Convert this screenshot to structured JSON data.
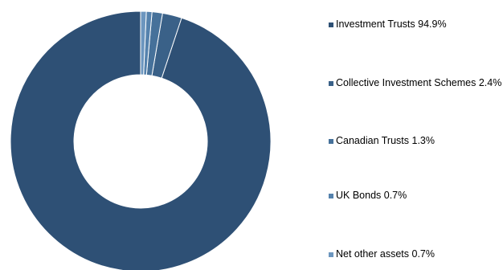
{
  "chart_data": {
    "type": "pie",
    "donut": true,
    "legend_position": "right",
    "slices": [
      {
        "label": "Investment Trusts 94.9%",
        "value": 94.9,
        "color": "#2e5075"
      },
      {
        "label": "Collective Investment Schemes 2.4%",
        "value": 2.4,
        "color": "#3a6188"
      },
      {
        "label": "Canadian Trusts 1.3%",
        "value": 1.3,
        "color": "#46719a"
      },
      {
        "label": "UK Bonds 0.7%",
        "value": 0.7,
        "color": "#5582ad"
      },
      {
        "label": "Net other assets 0.7%",
        "value": 0.7,
        "color": "#6c96bf"
      }
    ]
  }
}
